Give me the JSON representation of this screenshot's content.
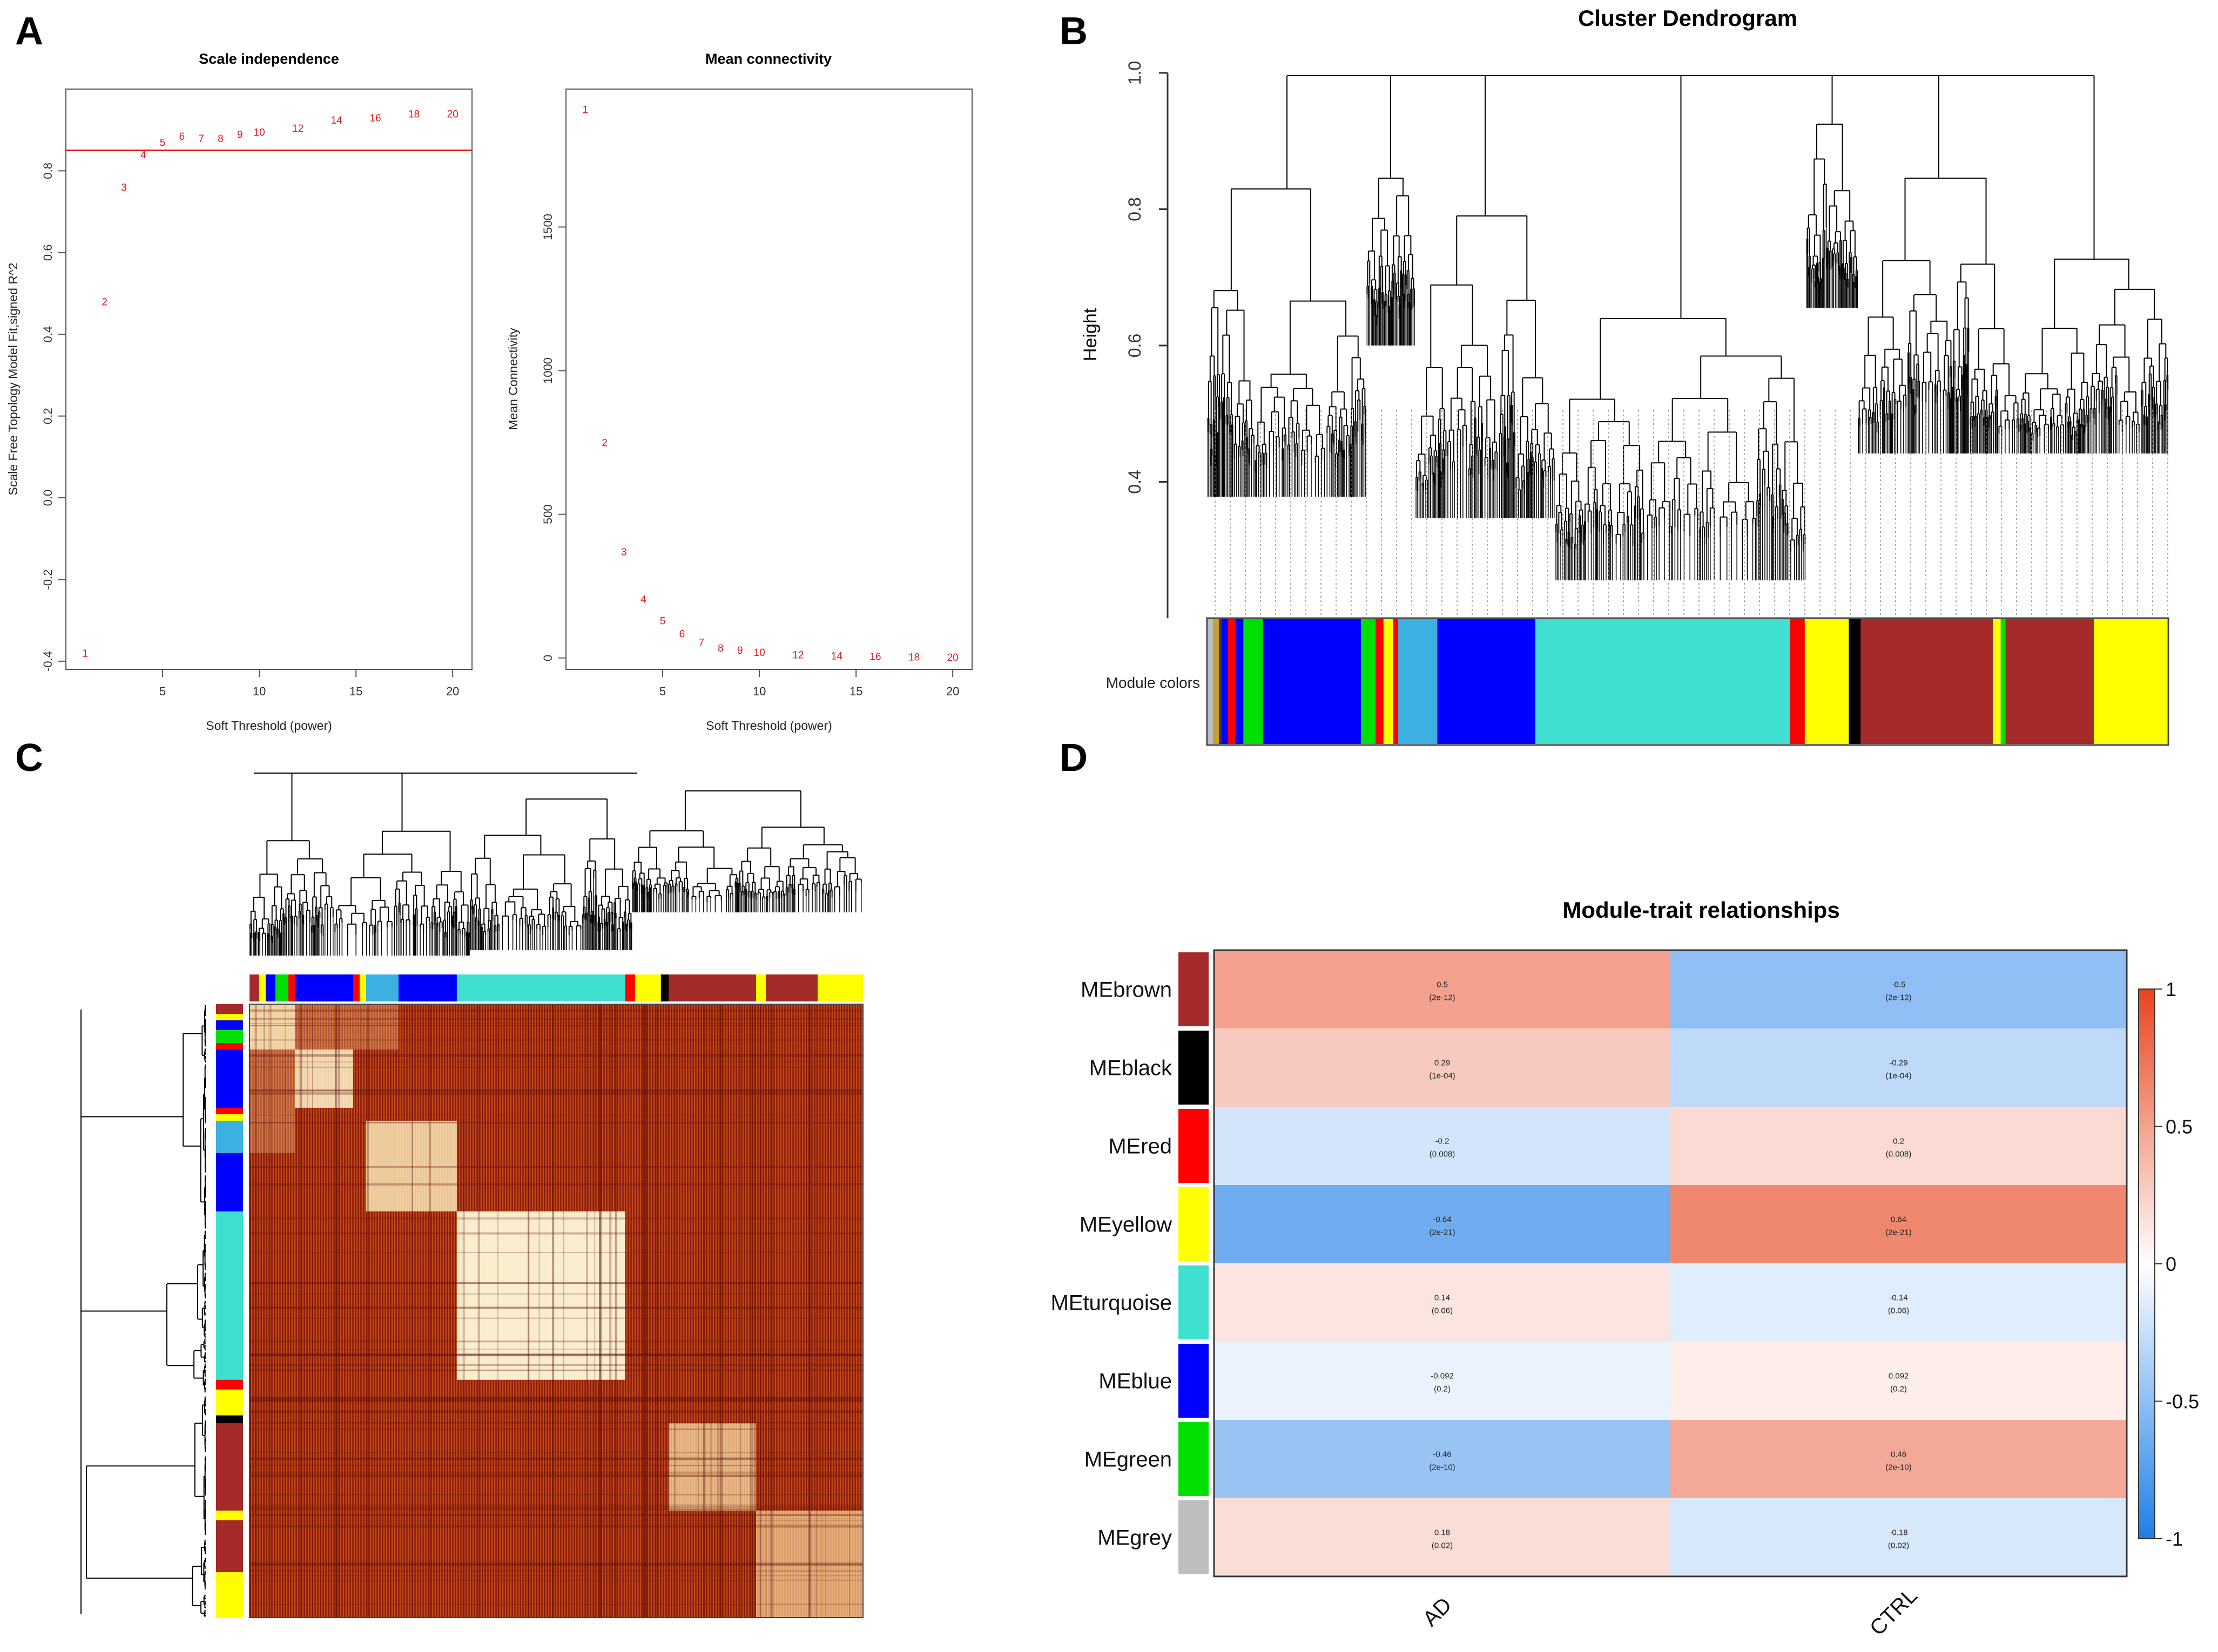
{
  "panels": {
    "A": "A",
    "B": "B",
    "C": "C",
    "D": "D"
  },
  "chart_data": [
    {
      "id": "scale_independence",
      "type": "scatter",
      "title": "Scale independence",
      "xlabel": "Soft Threshold (power)",
      "ylabel": "Scale Free Topology Model Fit,signed R^2",
      "xlim": [
        0,
        21
      ],
      "ylim": [
        -0.42,
        1.0
      ],
      "xticks": [
        5,
        10,
        15,
        20
      ],
      "yticks": [
        -0.4,
        -0.2,
        0.0,
        0.2,
        0.4,
        0.6,
        0.8
      ],
      "ytick_labels": [
        "-0.4",
        "-0.2",
        "0.0",
        "0.2",
        "0.4",
        "0.6",
        "0.8"
      ],
      "hline": 0.85,
      "color": "#e41a1c",
      "x": [
        1,
        2,
        3,
        4,
        5,
        6,
        7,
        8,
        9,
        10,
        12,
        14,
        16,
        18,
        20
      ],
      "y": [
        -0.38,
        0.48,
        0.76,
        0.84,
        0.87,
        0.885,
        0.88,
        0.88,
        0.89,
        0.895,
        0.905,
        0.925,
        0.93,
        0.94,
        0.94
      ],
      "point_labels": [
        "1",
        "2",
        "3",
        "4",
        "5",
        "6",
        "7",
        "8",
        "9",
        "10",
        "12",
        "14",
        "16",
        "18",
        "20"
      ]
    },
    {
      "id": "mean_connectivity",
      "type": "scatter",
      "title": "Mean connectivity",
      "xlabel": "Soft Threshold (power)",
      "ylabel": "Mean Connectivity",
      "xlim": [
        0,
        21
      ],
      "ylim": [
        -40,
        1980
      ],
      "xticks": [
        5,
        10,
        15,
        20
      ],
      "yticks": [
        0,
        500,
        1000,
        1500
      ],
      "color": "#e41a1c",
      "x": [
        1,
        2,
        3,
        4,
        5,
        6,
        7,
        8,
        9,
        10,
        12,
        14,
        16,
        18,
        20
      ],
      "y": [
        1910,
        750,
        370,
        205,
        130,
        85,
        55,
        35,
        28,
        20,
        12,
        8,
        6,
        4,
        3
      ],
      "point_labels": [
        "1",
        "2",
        "3",
        "4",
        "5",
        "6",
        "7",
        "8",
        "9",
        "10",
        "12",
        "14",
        "16",
        "18",
        "20"
      ]
    },
    {
      "id": "cluster_dendrogram",
      "type": "dendrogram",
      "title": "Cluster Dendrogram",
      "ylabel": "Height",
      "ylim": [
        0.2,
        1.0
      ],
      "yticks": [
        0.4,
        0.6,
        0.8,
        1.0
      ],
      "ytick_labels": [
        "0.4",
        "0.6",
        "0.8",
        "1.0"
      ],
      "colorbar_label": "Module colors",
      "module_colors": [
        {
          "color": "#bebebe",
          "width": 0.5
        },
        {
          "color": "#c8a030",
          "width": 0.6
        },
        {
          "color": "#3a3a3a",
          "width": 0.3
        },
        {
          "color": "#0000ff",
          "width": 0.6
        },
        {
          "color": "#ff0000",
          "width": 0.8
        },
        {
          "color": "#0000ff",
          "width": 0.8
        },
        {
          "color": "#00e000",
          "width": 2.0
        },
        {
          "color": "#0000ff",
          "width": 10.0
        },
        {
          "color": "#00e000",
          "width": 1.5
        },
        {
          "color": "#ff0000",
          "width": 0.8
        },
        {
          "color": "#ffff00",
          "width": 1.0
        },
        {
          "color": "#ff0000",
          "width": 0.5
        },
        {
          "color": "#3cb0e0",
          "width": 4.0
        },
        {
          "color": "#0000ff",
          "width": 10.0
        },
        {
          "color": "#40e0d0",
          "width": 26.0
        },
        {
          "color": "#ff0000",
          "width": 1.5
        },
        {
          "color": "#ffff00",
          "width": 4.5
        },
        {
          "color": "#000000",
          "width": 1.2
        },
        {
          "color": "#a52a2a",
          "width": 13.5
        },
        {
          "color": "#ffff00",
          "width": 0.8
        },
        {
          "color": "#00e000",
          "width": 0.5
        },
        {
          "color": "#a52a2a",
          "width": 1.0
        },
        {
          "color": "#a52a2a",
          "width": 8.0
        },
        {
          "color": "#ffff00",
          "width": 7.5
        }
      ]
    },
    {
      "id": "module_trait",
      "type": "heatmap",
      "title": "Module-trait relationships",
      "columns": [
        "AD",
        "CTRL"
      ],
      "colorbar_ticks": [
        1,
        0.5,
        0,
        -0.5,
        -1
      ],
      "colorbar_tick_labels": [
        "1",
        "0.5",
        "0",
        "-0.5",
        "-1"
      ],
      "rows": [
        {
          "name": "MEbrown",
          "module_color": "#a52a2a",
          "values": [
            0.5,
            -0.5
          ],
          "labels": [
            "0.5",
            "-0.5"
          ],
          "pvalues": [
            "(2e-12)",
            "(2e-12)"
          ]
        },
        {
          "name": "MEblack",
          "module_color": "#000000",
          "values": [
            0.29,
            -0.29
          ],
          "labels": [
            "0.29",
            "-0.29"
          ],
          "pvalues": [
            "(1e-04)",
            "(1e-04)"
          ]
        },
        {
          "name": "MEred",
          "module_color": "#ff0000",
          "values": [
            -0.2,
            0.2
          ],
          "labels": [
            "-0.2",
            "0.2"
          ],
          "pvalues": [
            "(0.008)",
            "(0.008)"
          ]
        },
        {
          "name": "MEyellow",
          "module_color": "#ffff00",
          "values": [
            -0.64,
            0.64
          ],
          "labels": [
            "-0.64",
            "0.64"
          ],
          "pvalues": [
            "(2e-21)",
            "(2e-21)"
          ]
        },
        {
          "name": "MEturquoise",
          "module_color": "#40e0d0",
          "values": [
            0.14,
            -0.14
          ],
          "labels": [
            "0.14",
            "-0.14"
          ],
          "pvalues": [
            "(0.06)",
            "(0.06)"
          ]
        },
        {
          "name": "MEblue",
          "module_color": "#0000ff",
          "values": [
            -0.092,
            0.092
          ],
          "labels": [
            "-0.092",
            "0.092"
          ],
          "pvalues": [
            "(0.2)",
            "(0.2)"
          ]
        },
        {
          "name": "MEgreen",
          "module_color": "#00e000",
          "values": [
            -0.46,
            0.46
          ],
          "labels": [
            "-0.46",
            "0.46"
          ],
          "pvalues": [
            "(2e-10)",
            "(2e-10)"
          ]
        },
        {
          "name": "MEgrey",
          "module_color": "#bebebe",
          "values": [
            0.18,
            -0.18
          ],
          "labels": [
            "0.18",
            "-0.18"
          ],
          "pvalues": [
            "(0.02)",
            "(0.02)"
          ]
        }
      ]
    }
  ],
  "tom_heatmap": {
    "module_order": [
      {
        "color": "#a52a2a",
        "width": 1.5
      },
      {
        "color": "#ffff00",
        "width": 1.0
      },
      {
        "color": "#0000ff",
        "width": 1.5
      },
      {
        "color": "#00e000",
        "width": 2.0
      },
      {
        "color": "#ff0000",
        "width": 1.0
      },
      {
        "color": "#0000ff",
        "width": 9.0
      },
      {
        "color": "#ff0000",
        "width": 1.0
      },
      {
        "color": "#ffff00",
        "width": 1.0
      },
      {
        "color": "#3cb0e0",
        "width": 5.0
      },
      {
        "color": "#0000ff",
        "width": 9.0
      },
      {
        "color": "#40e0d0",
        "width": 26.0
      },
      {
        "color": "#ff0000",
        "width": 1.5
      },
      {
        "color": "#ffff00",
        "width": 4.0
      },
      {
        "color": "#000000",
        "width": 1.2
      },
      {
        "color": "#a52a2a",
        "width": 13.5
      },
      {
        "color": "#ffff00",
        "width": 1.5
      },
      {
        "color": "#a52a2a",
        "width": 8.0
      },
      {
        "color": "#ffff00",
        "width": 7.0
      }
    ]
  }
}
